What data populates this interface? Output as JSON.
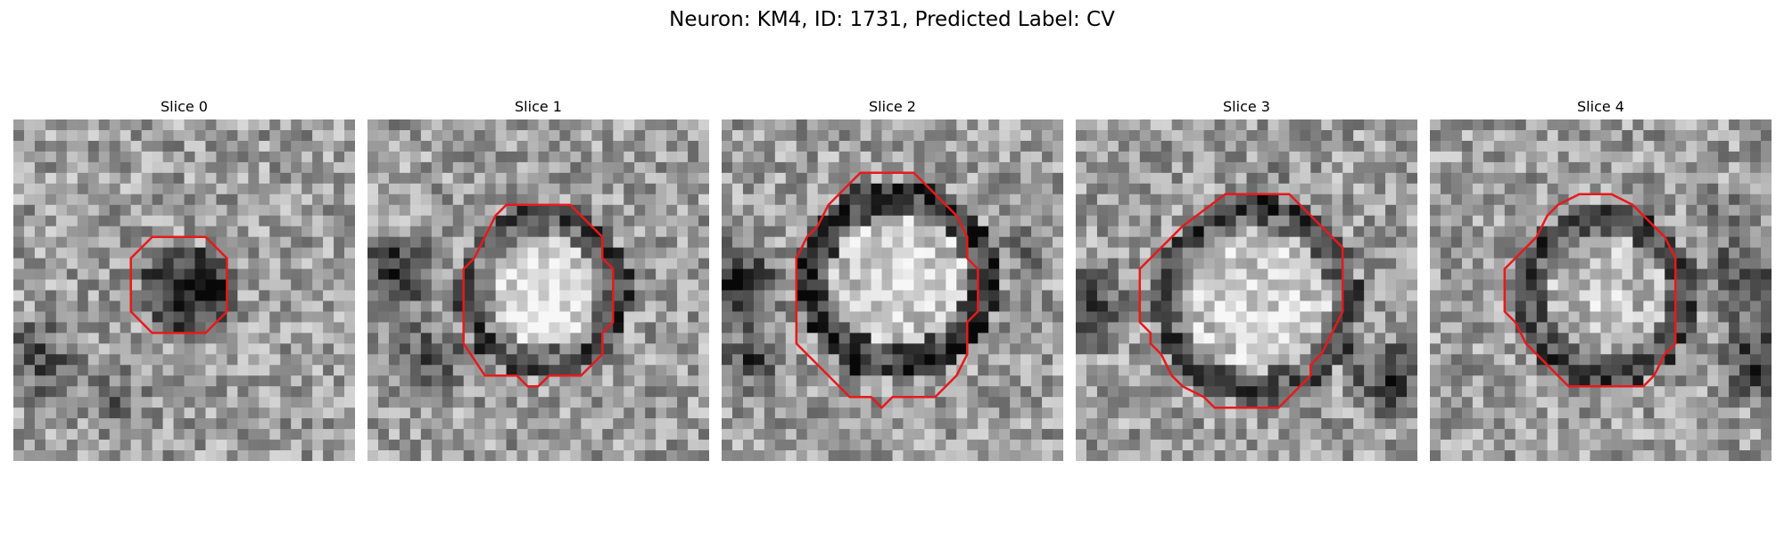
{
  "title": "Neuron: KM4, ID: 1731, Predicted Label: CV",
  "contour_color": "#e8191b",
  "panels": [
    {
      "label": "Slice 0"
    },
    {
      "label": "Slice 1"
    },
    {
      "label": "Slice 2"
    },
    {
      "label": "Slice 3"
    },
    {
      "label": "Slice 4"
    }
  ]
}
